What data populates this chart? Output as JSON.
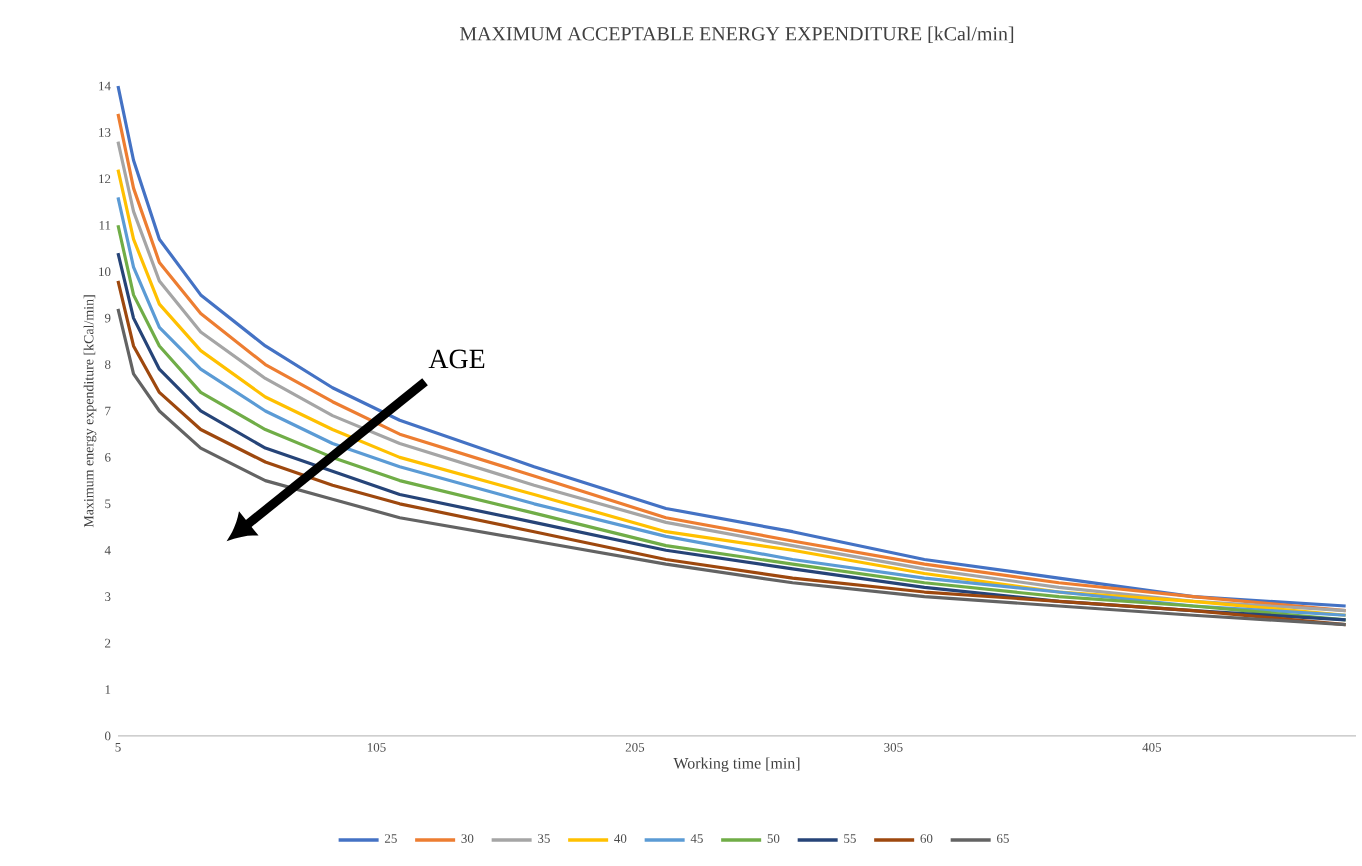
{
  "chart_data": {
    "type": "line",
    "title": "MAXIMUM ACCEPTABLE  ENERGY EXPENDITURE [kCal/min]",
    "xlabel": "Working time [min]",
    "ylabel": "Maximum energy expenditure [kCal/min]",
    "x": [
      5,
      11,
      21,
      37,
      62,
      88,
      114,
      166,
      217,
      266,
      317,
      369,
      421,
      480
    ],
    "series": [
      {
        "name": "25",
        "color": "#4472c4",
        "values": [
          14.0,
          12.4,
          10.7,
          9.5,
          8.4,
          7.5,
          6.8,
          5.8,
          4.9,
          4.4,
          3.8,
          3.4,
          3.0,
          2.8
        ]
      },
      {
        "name": "30",
        "color": "#ed7d31",
        "values": [
          13.4,
          11.8,
          10.2,
          9.1,
          8.0,
          7.2,
          6.5,
          5.6,
          4.7,
          4.2,
          3.7,
          3.3,
          3.0,
          2.7
        ]
      },
      {
        "name": "35",
        "color": "#a5a5a5",
        "values": [
          12.8,
          11.3,
          9.8,
          8.7,
          7.7,
          6.9,
          6.3,
          5.4,
          4.6,
          4.1,
          3.6,
          3.2,
          2.9,
          2.7
        ]
      },
      {
        "name": "40",
        "color": "#ffc000",
        "values": [
          12.2,
          10.7,
          9.3,
          8.3,
          7.3,
          6.6,
          6.0,
          5.2,
          4.4,
          4.0,
          3.5,
          3.1,
          2.9,
          2.6
        ]
      },
      {
        "name": "45",
        "color": "#5b9bd5",
        "values": [
          11.6,
          10.1,
          8.8,
          7.9,
          7.0,
          6.3,
          5.8,
          5.0,
          4.3,
          3.8,
          3.4,
          3.1,
          2.8,
          2.6
        ]
      },
      {
        "name": "50",
        "color": "#70ad47",
        "values": [
          11.0,
          9.5,
          8.4,
          7.4,
          6.6,
          6.0,
          5.5,
          4.8,
          4.1,
          3.7,
          3.3,
          3.0,
          2.8,
          2.5
        ]
      },
      {
        "name": "55",
        "color": "#264478",
        "values": [
          10.4,
          9.0,
          7.9,
          7.0,
          6.2,
          5.7,
          5.2,
          4.6,
          4.0,
          3.6,
          3.2,
          2.9,
          2.7,
          2.5
        ]
      },
      {
        "name": "60",
        "color": "#9e480e",
        "values": [
          9.8,
          8.4,
          7.4,
          6.6,
          5.9,
          5.4,
          5.0,
          4.4,
          3.8,
          3.4,
          3.1,
          2.9,
          2.7,
          2.4
        ]
      },
      {
        "name": "65",
        "color": "#636363",
        "values": [
          9.2,
          7.8,
          7.0,
          6.2,
          5.5,
          5.1,
          4.7,
          4.2,
          3.7,
          3.3,
          3.0,
          2.8,
          2.6,
          2.4
        ]
      }
    ],
    "xlim": [
      5,
      484
    ],
    "xticks": [
      5,
      105,
      205,
      305,
      405
    ],
    "ylim": [
      0,
      14
    ],
    "yticks": [
      0,
      1,
      2,
      3,
      4,
      5,
      6,
      7,
      8,
      9,
      10,
      11,
      12,
      13,
      14
    ],
    "annotations": [
      "AGE"
    ],
    "legend": "bottom",
    "grid": false,
    "marker": "none",
    "line_style": "solid"
  }
}
